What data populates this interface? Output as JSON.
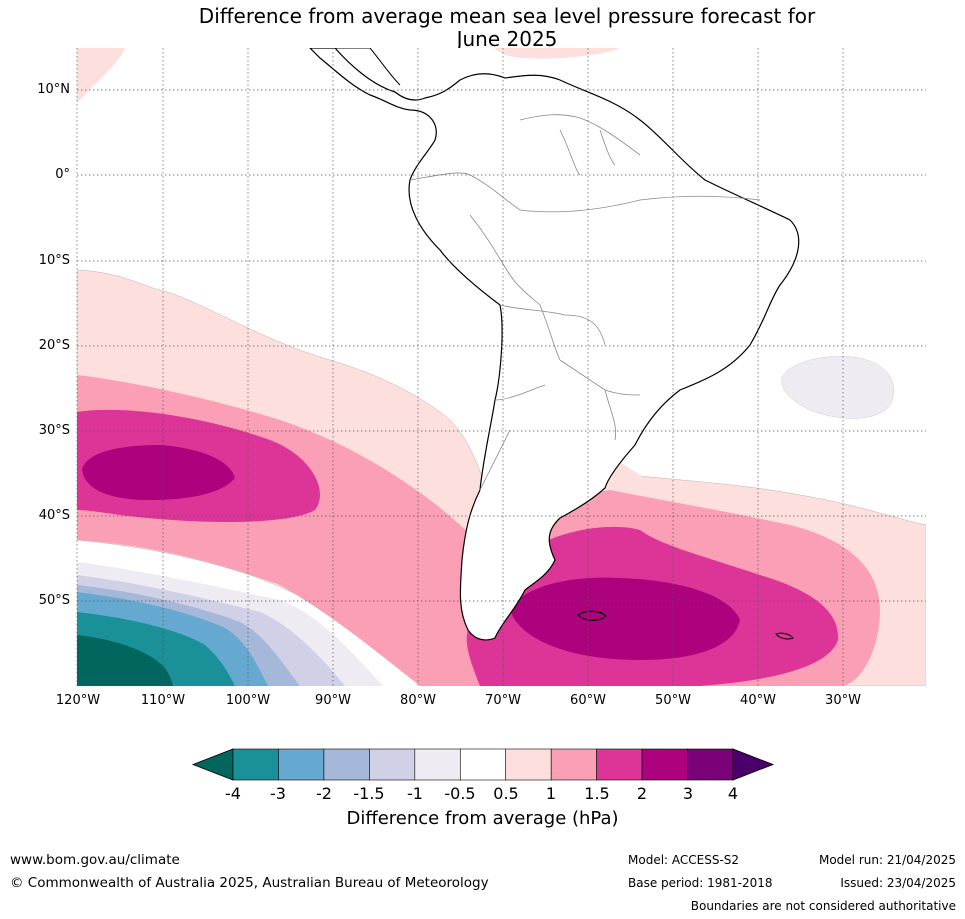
{
  "title_line1": "Difference from average mean sea level pressure forecast for",
  "title_line2": "June 2025",
  "lat_labels": [
    "10°N",
    "0°",
    "10°S",
    "20°S",
    "30°S",
    "40°S",
    "50°S"
  ],
  "lon_labels": [
    "120°W",
    "110°W",
    "100°W",
    "90°W",
    "80°W",
    "70°W",
    "60°W",
    "50°W",
    "40°W",
    "30°W"
  ],
  "colorbar": {
    "title": "Difference from average (hPa)",
    "ticks": [
      "-4",
      "-3",
      "-2",
      "-1.5",
      "-1",
      "-0.5",
      "0.5",
      "1",
      "1.5",
      "2",
      "3",
      "4"
    ],
    "colors": [
      "#1a9099",
      "#66a9d0",
      "#a6b8da",
      "#d0d0e6",
      "#efebf2",
      "#ffffff",
      "#fde0dd",
      "#fa9fb5",
      "#dd3497",
      "#ae017e",
      "#7a0177"
    ],
    "under_color": "#01665e",
    "over_color": "#49006a"
  },
  "footer": {
    "url": "www.bom.gov.au/climate",
    "copyright": "© Commonwealth of Australia 2025, Australian Bureau of Meteorology",
    "model": "Model: ACCESS-S2",
    "base_period": "Base period: 1981-2018",
    "model_run": "Model run: 21/04/2025",
    "issued": "Issued: 23/04/2025",
    "boundaries_note": "Boundaries are not considered authoritative"
  }
}
